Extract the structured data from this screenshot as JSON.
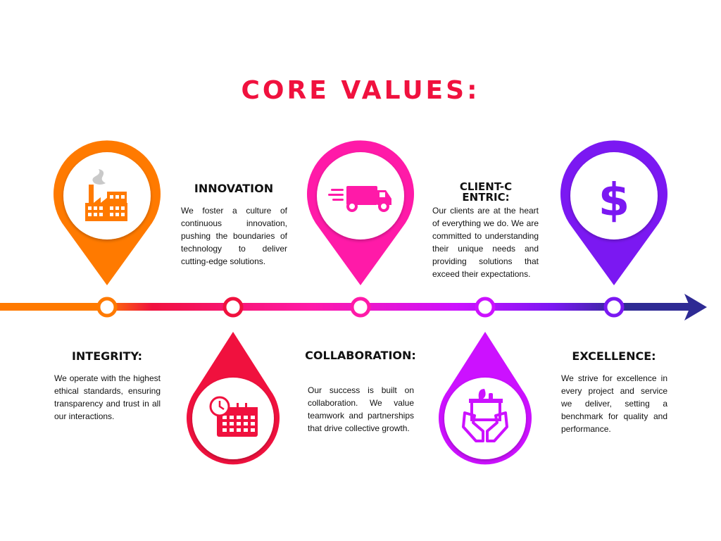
{
  "title": "CORE VALUES:",
  "colors": {
    "orange": "#ff7a00",
    "red": "#f0113e",
    "magenta": "#ff1aa8",
    "violet": "#cc11ff",
    "purple": "#7b18f2",
    "navy": "#2e2a94"
  },
  "values": [
    {
      "heading": "INTEGRITY:",
      "text": "We operate with the highest ethical standards, ensuring transparency and trust in all our interactions.",
      "icon": "factory-icon"
    },
    {
      "heading": "INNOVATION",
      "text": "We foster a culture of continuous innovation, pushing the boundaries of technology to deliver cutting-edge solutions.",
      "icon": "calendar-clock-icon"
    },
    {
      "heading": "COLLABORATION:",
      "text": "Our success is built on collaboration. We value teamwork and partnerships that drive collective growth.",
      "icon": "delivery-truck-icon"
    },
    {
      "heading": "CLIENT-CENTRIC:",
      "text": "Our clients are at the heart of everything we do. We are committed to understanding their unique needs and providing solutions that exceed their expectations.",
      "icon": "hands-box-icon"
    },
    {
      "heading": "EXCELLENCE:",
      "text": "We strive for excellence in every project and service we deliver, setting a benchmark for quality and performance.",
      "icon": "dollar-icon"
    }
  ]
}
